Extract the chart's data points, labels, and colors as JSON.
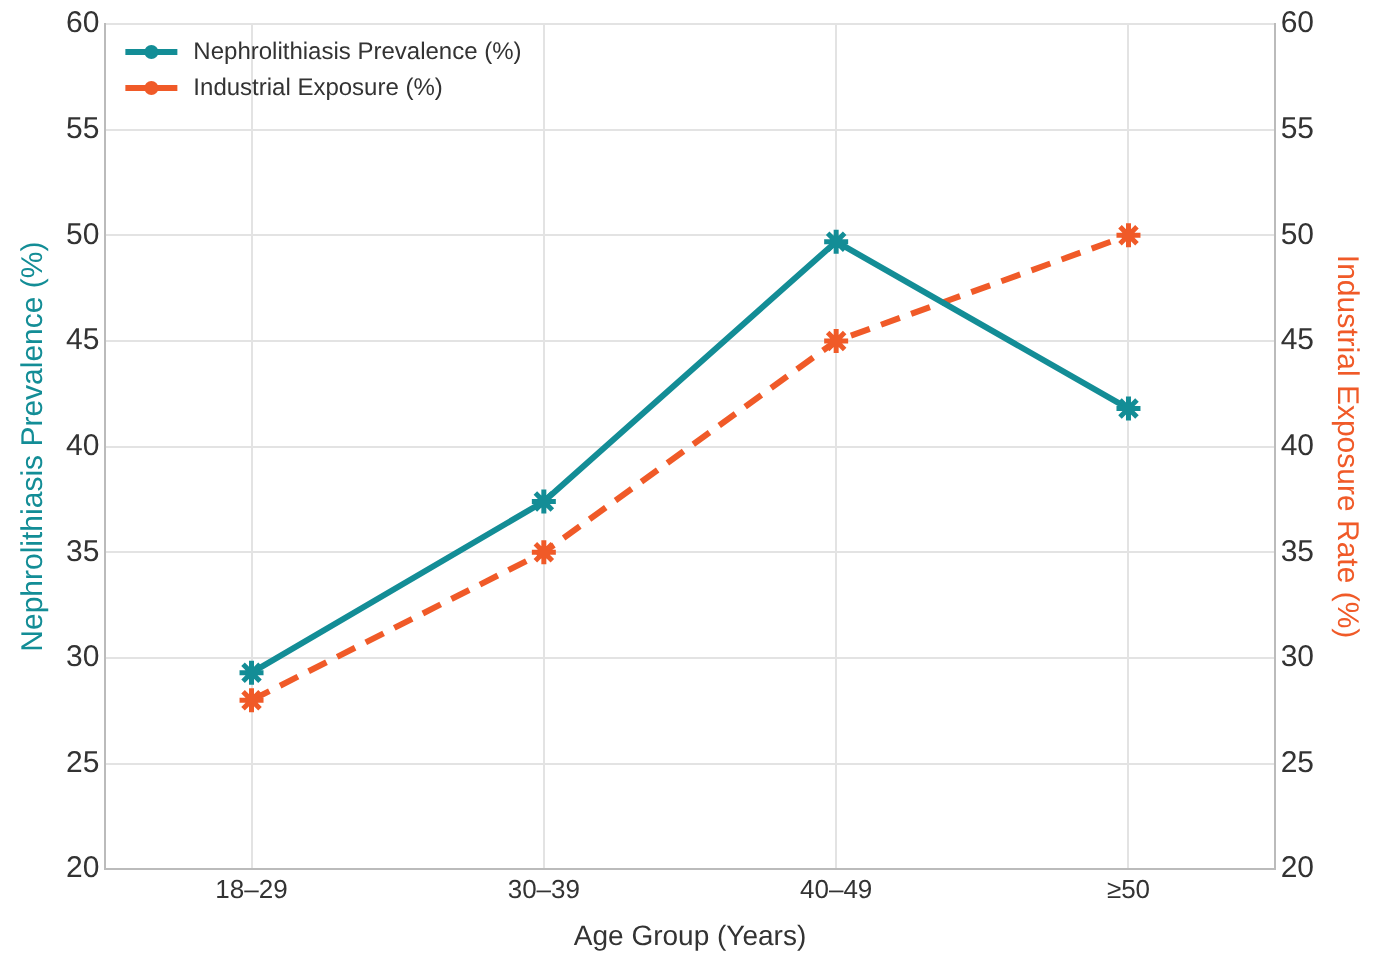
{
  "chart_data": {
    "type": "line",
    "xlabel": "Age Group (Years)",
    "ylabel": "Nephrolithiasis Prevalence (%)",
    "y2label": "Industrial Exposure Rate (%)",
    "categories": [
      "18–29",
      "30–39",
      "40–49",
      "≥50"
    ],
    "series": [
      {
        "name": "Nephrolithiasis Prevalence (%)",
        "color": "#138d96",
        "values": [
          29.3,
          37.4,
          49.7,
          41.8
        ],
        "line_style": "solid"
      },
      {
        "name": "Industrial Exposure (%)",
        "color": "#f05a28",
        "values": [
          28,
          35,
          45,
          50
        ],
        "axis": "y2",
        "line_style": "dashed"
      }
    ],
    "ylim": [
      20,
      60
    ],
    "yticks": [
      20,
      25,
      30,
      35,
      40,
      45,
      50,
      55,
      60
    ],
    "y2lim": [
      20,
      60
    ],
    "y2ticks": [
      20,
      25,
      30,
      35,
      40,
      45,
      50,
      55,
      60
    ],
    "grid": true,
    "legend": "top left",
    "marker": "cross"
  }
}
